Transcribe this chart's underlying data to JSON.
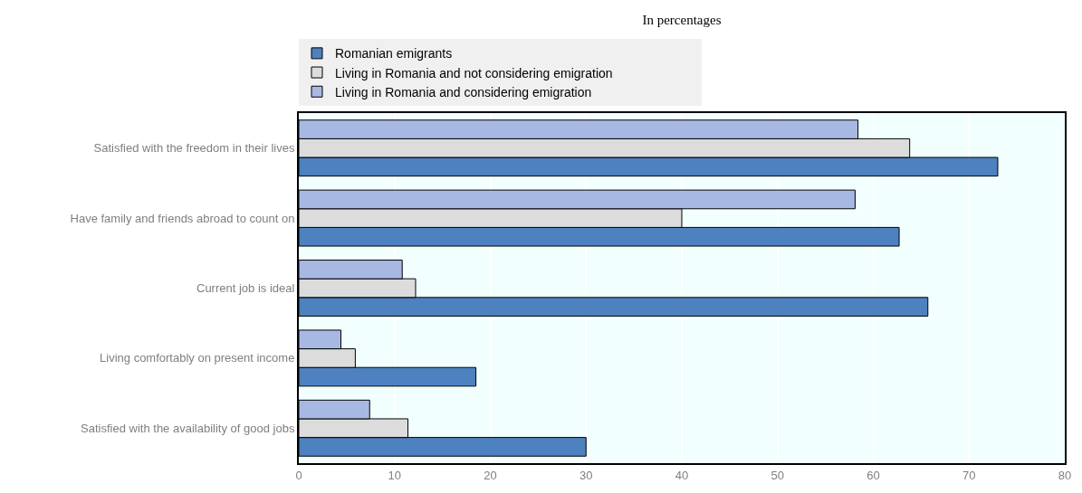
{
  "chart_data": {
    "type": "bar",
    "orientation": "horizontal",
    "title": "In percentages",
    "categories": [
      "Satisfied with the freedom in their lives",
      "Have family and friends abroad to count on",
      "Current job is ideal",
      "Living comfortably on present income",
      "Satisfied with the availability of good jobs"
    ],
    "series": [
      {
        "name": "Romanian emigrants",
        "color": "#4d81bf",
        "values": [
          73.0,
          62.7,
          65.7,
          18.5,
          30.0
        ]
      },
      {
        "name": "Living in Romania and not considering emigration",
        "color": "#dcdcdc",
        "values": [
          63.8,
          40.0,
          12.2,
          5.9,
          11.4
        ]
      },
      {
        "name": "Living in Romania and considering emigration",
        "color": "#a7b9e3",
        "values": [
          58.4,
          58.1,
          10.8,
          4.4,
          7.4
        ]
      }
    ],
    "xlim": [
      0,
      80
    ],
    "xticks": [
      0,
      10,
      20,
      30,
      40,
      50,
      60,
      70,
      80
    ],
    "grid": "x",
    "legend": "top"
  }
}
